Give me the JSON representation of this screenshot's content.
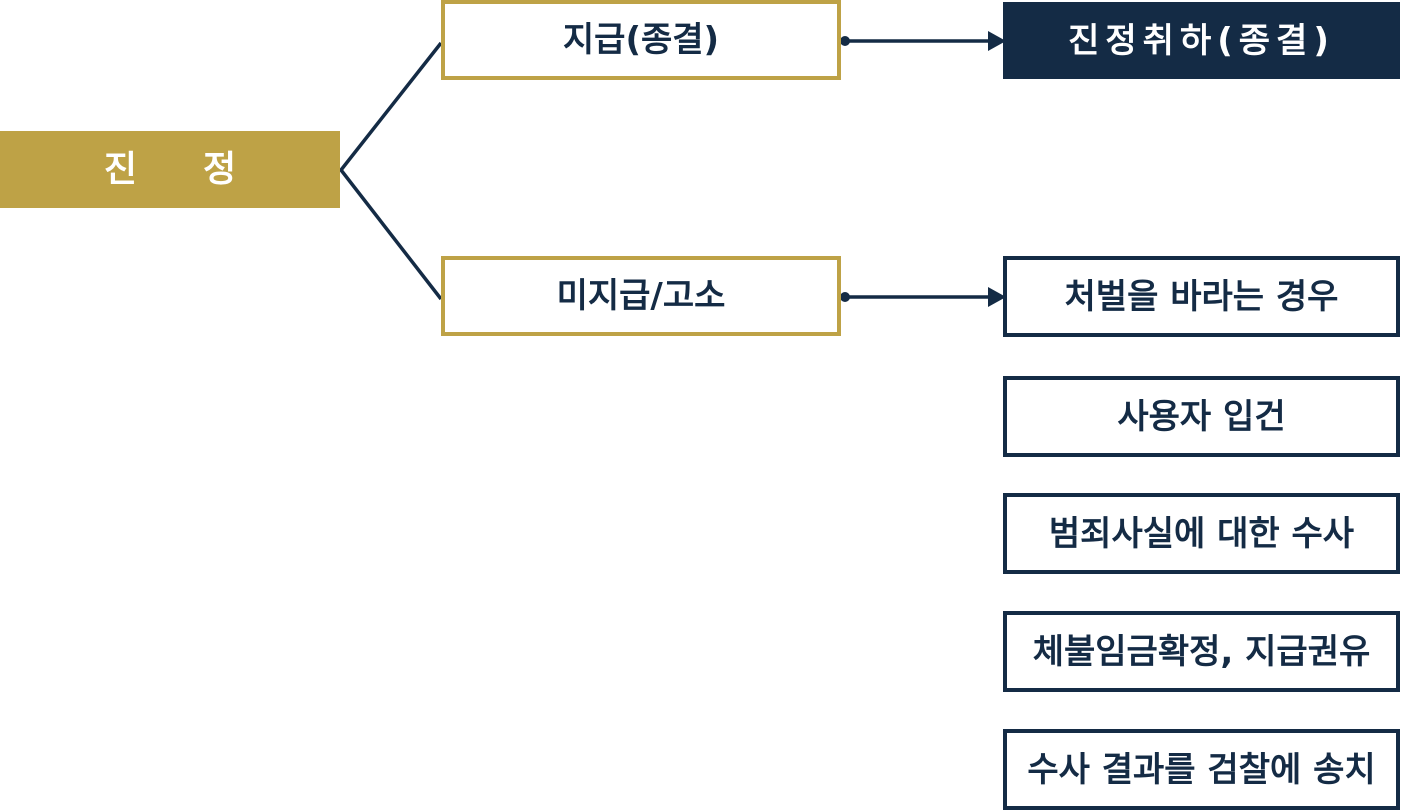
{
  "diagram": {
    "root": {
      "label_left": "진",
      "label_right": "정"
    },
    "branches": [
      {
        "label": "지급(종결)"
      },
      {
        "label": "미지급/고소"
      }
    ],
    "outcome": {
      "label": "진정취하(종결)"
    },
    "steps": [
      {
        "label": "처벌을 바라는 경우"
      },
      {
        "label": "사용자 입건"
      },
      {
        "label": "범죄사실에 대한 수사"
      },
      {
        "label": "체불임금확정, 지급권유"
      },
      {
        "label": "수사 결과를 검찰에 송치"
      }
    ]
  },
  "colors": {
    "gold": "#bea246",
    "navy": "#142b45",
    "background": "#ffffff"
  }
}
